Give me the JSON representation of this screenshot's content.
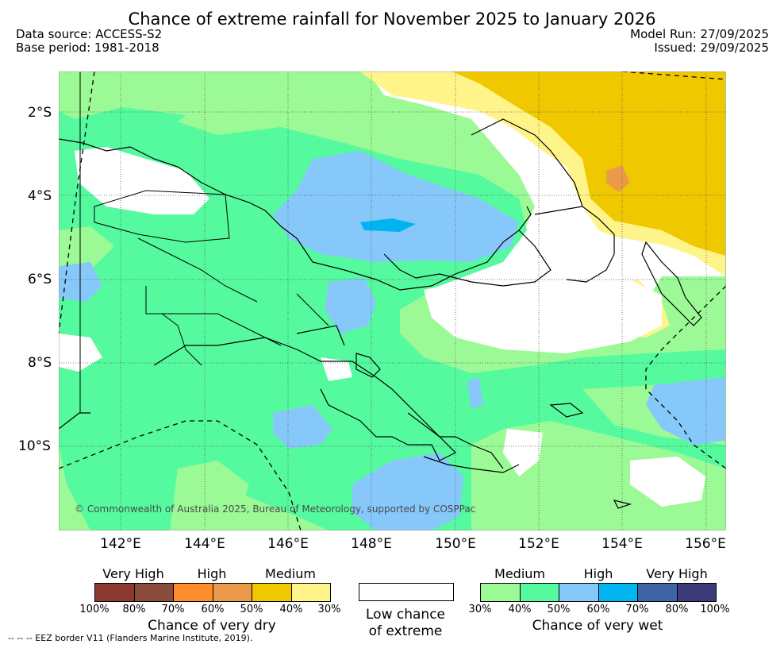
{
  "title": "Chance of extreme rainfall for November 2025 to January 2026",
  "header": {
    "data_source": "Data source: ACCESS-S2",
    "base_period": "Base period: 1981-2018",
    "model_run": "Model Run: 27/09/2025",
    "issued": "Issued: 29/09/2025"
  },
  "axes": {
    "lat_labels": [
      "2°S",
      "4°S",
      "6°S",
      "8°S",
      "10°S"
    ],
    "lon_labels": [
      "142°E",
      "144°E",
      "146°E",
      "148°E",
      "150°E",
      "152°E",
      "154°E",
      "156°E"
    ]
  },
  "copyright": "© Commonwealth of Australia 2025, Bureau of Meteorology, supported by COSPPac",
  "legend": {
    "dry": {
      "categories": [
        "Very High",
        "High",
        "Medium"
      ],
      "percents": [
        "100%",
        "80%",
        "70%",
        "60%",
        "50%",
        "40%",
        "30%"
      ],
      "caption": "Chance of very dry",
      "colors": [
        "#8b3a32",
        "#8b4c3c",
        "#ff8c2a",
        "#eb9a4a",
        "#efc800",
        "#fff48a"
      ]
    },
    "neutral": {
      "line1": "Low chance",
      "line2": "of extreme",
      "color": "#ffffff"
    },
    "wet": {
      "categories": [
        "Medium",
        "High",
        "Very High"
      ],
      "percents": [
        "30%",
        "40%",
        "50%",
        "60%",
        "70%",
        "80%",
        "100%"
      ],
      "caption": "Chance of very wet",
      "colors": [
        "#9cfa96",
        "#55fa9e",
        "#87c8fa",
        "#00b4f0",
        "#3c64a6",
        "#3c3c78"
      ]
    }
  },
  "footnote": "--  --  -- EEZ border V11 (Flanders Marine Institute, 2019)."
}
